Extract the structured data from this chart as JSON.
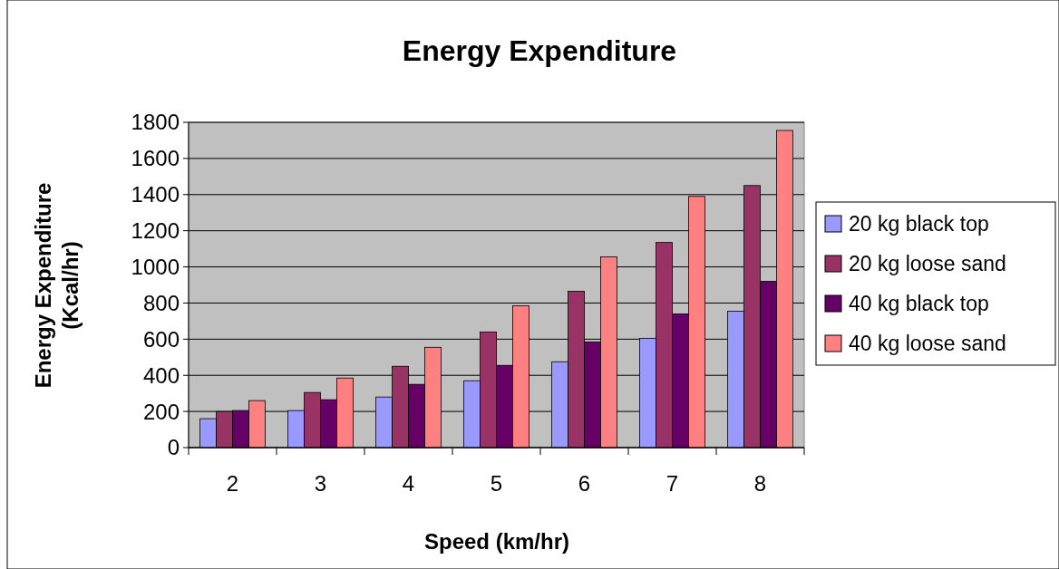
{
  "chart_data": {
    "type": "bar",
    "title": "Energy Expenditure",
    "xlabel": "Speed (km/hr)",
    "ylabel": "Energy Expenditure (Kcal/hr)",
    "categories": [
      "2",
      "3",
      "4",
      "5",
      "6",
      "7",
      "8"
    ],
    "series": [
      {
        "name": "20 kg black top",
        "color": "#9999ff",
        "values": [
          160,
          205,
          280,
          370,
          475,
          605,
          755
        ]
      },
      {
        "name": "20 kg loose sand",
        "color": "#993366",
        "values": [
          200,
          305,
          450,
          640,
          865,
          1135,
          1450
        ]
      },
      {
        "name": "40 kg black top",
        "color": "#660066",
        "values": [
          205,
          265,
          350,
          455,
          585,
          740,
          920
        ]
      },
      {
        "name": "40 kg loose sand",
        "color": "#ff8080",
        "values": [
          260,
          385,
          555,
          785,
          1055,
          1390,
          1755
        ]
      }
    ],
    "ylim": [
      0,
      1800
    ],
    "yticks": [
      0,
      200,
      400,
      600,
      800,
      1000,
      1200,
      1400,
      1600,
      1800
    ],
    "grid": "y",
    "legend": "right"
  }
}
